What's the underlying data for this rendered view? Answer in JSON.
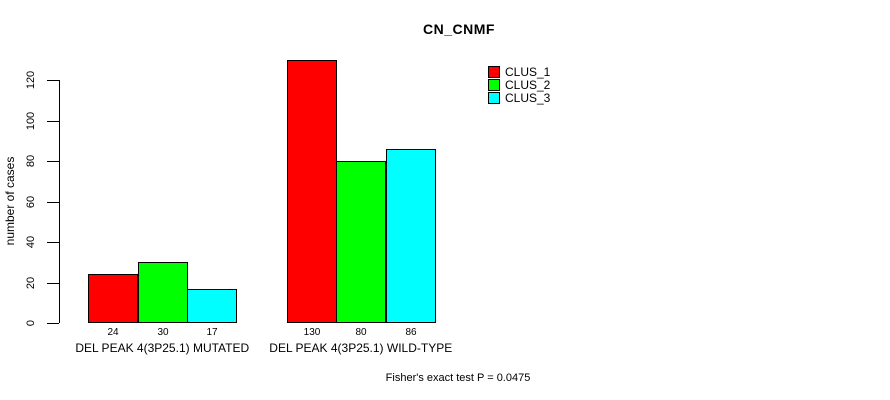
{
  "chart_data": {
    "type": "bar",
    "title": "CN_CNMF",
    "xlabel": "",
    "ylabel": "number of cases",
    "categories": [
      "DEL PEAK 4(3P25.1) MUTATED",
      "DEL PEAK 4(3P25.1) WILD-TYPE"
    ],
    "series": [
      {
        "name": "CLUS_1",
        "color": "#ff0000",
        "values": [
          24,
          130
        ]
      },
      {
        "name": "CLUS_2",
        "color": "#00ff00",
        "values": [
          30,
          80
        ]
      },
      {
        "name": "CLUS_3",
        "color": "#00ffff",
        "values": [
          17,
          86
        ]
      }
    ],
    "bar_value_labels": true,
    "yticks": [
      0,
      20,
      40,
      60,
      80,
      100,
      120
    ],
    "ylim": [
      0,
      130
    ],
    "grid": false,
    "legend_position": "top-right",
    "annotation": "Fisher's exact test P = 0.0475"
  }
}
